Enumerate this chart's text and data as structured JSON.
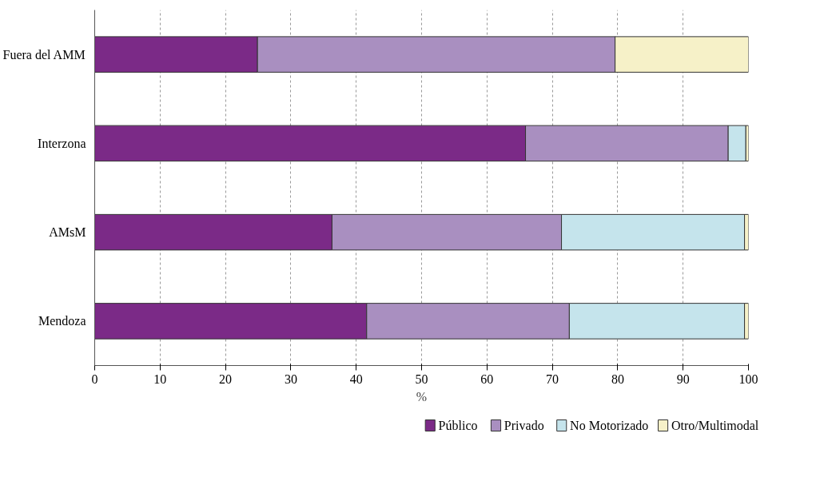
{
  "chart_data": {
    "type": "bar",
    "orientation": "horizontal",
    "stacked": true,
    "xlabel": "%",
    "categories": [
      "Fuera del AMM",
      "Interzona",
      "AMsM",
      "Mendoza"
    ],
    "series": [
      {
        "name": "Público",
        "color": "#7b2a87",
        "values": [
          24.9,
          65.9,
          36.3,
          41.6
        ]
      },
      {
        "name": "Privado",
        "color": "#a98fc0",
        "values": [
          54.7,
          31.0,
          35.1,
          31.0
        ]
      },
      {
        "name": "No Motorizado",
        "color": "#c5e4ec",
        "values": [
          0,
          2.7,
          28.0,
          26.8
        ]
      },
      {
        "name": "Otro/Multimodal",
        "color": "#f6f1c8",
        "values": [
          20.4,
          0.4,
          0.6,
          0.6
        ]
      }
    ],
    "xlim": [
      0,
      100
    ],
    "xticks": [
      0,
      10,
      20,
      30,
      40,
      50,
      60,
      70,
      80,
      90,
      100
    ],
    "grid": "x",
    "legend": "bottom"
  }
}
